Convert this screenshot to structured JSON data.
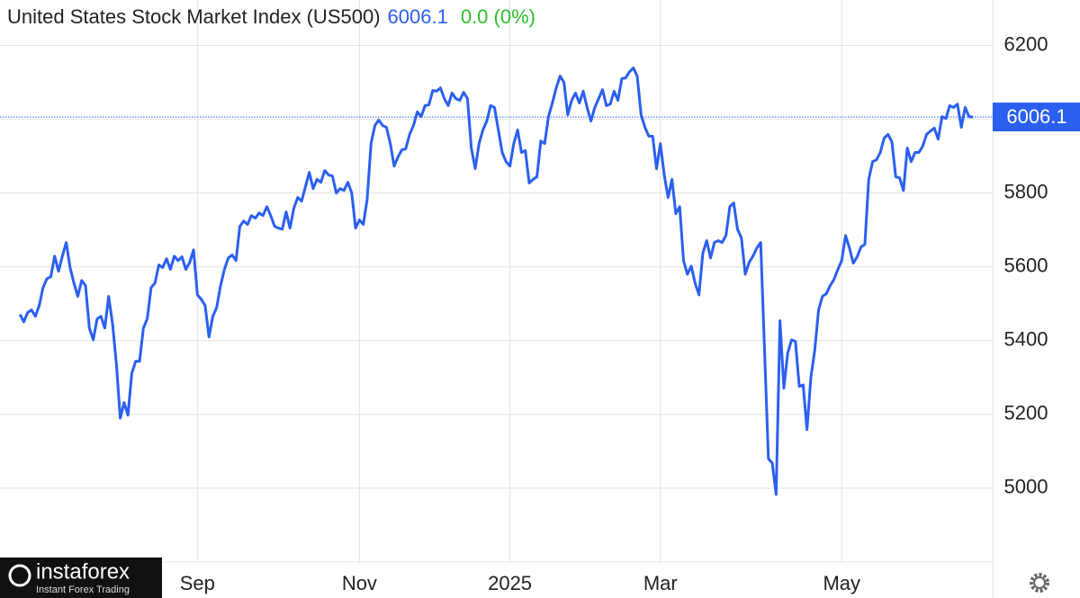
{
  "chart_data": {
    "type": "line",
    "title": "United States Stock Market Index (US500)",
    "current_value": 6006.1,
    "change_text": "0.0 (0%)",
    "series": [
      {
        "name": "US500",
        "color": "#2b5ff0",
        "values": [
          5471,
          5451,
          5476,
          5483,
          5466,
          5495,
          5544,
          5568,
          5573,
          5629,
          5588,
          5629,
          5666,
          5598,
          5556,
          5520,
          5563,
          5549,
          5434,
          5402,
          5459,
          5466,
          5434,
          5520,
          5446,
          5337,
          5190,
          5232,
          5198,
          5312,
          5344,
          5344,
          5434,
          5459,
          5544,
          5556,
          5605,
          5598,
          5622,
          5593,
          5629,
          5617,
          5627,
          5593,
          5612,
          5646,
          5524,
          5512,
          5495,
          5410,
          5466,
          5490,
          5549,
          5593,
          5624,
          5632,
          5617,
          5710,
          5724,
          5715,
          5739,
          5732,
          5746,
          5739,
          5763,
          5739,
          5710,
          5705,
          5702,
          5749,
          5705,
          5759,
          5788,
          5778,
          5817,
          5856,
          5812,
          5837,
          5829,
          5861,
          5849,
          5846,
          5800,
          5812,
          5807,
          5829,
          5800,
          5705,
          5727,
          5715,
          5783,
          5934,
          5983,
          5998,
          5983,
          5978,
          5934,
          5873,
          5898,
          5917,
          5920,
          5959,
          5983,
          6020,
          6007,
          6037,
          6039,
          6078,
          6076,
          6085,
          6056,
          6037,
          6071,
          6056,
          6051,
          6073,
          6056,
          5922,
          5866,
          5934,
          5971,
          5995,
          6037,
          6032,
          5971,
          5910,
          5885,
          5873,
          5934,
          5971,
          5910,
          5915,
          5827,
          5837,
          5844,
          5941,
          5934,
          6007,
          6044,
          6085,
          6117,
          6100,
          6012,
          6051,
          6071,
          6044,
          6076,
          6032,
          5995,
          6032,
          6056,
          6080,
          6037,
          6041,
          6076,
          6051,
          6110,
          6112,
          6129,
          6139,
          6117,
          6012,
          5978,
          5954,
          5954,
          5866,
          5934,
          5849,
          5788,
          5837,
          5744,
          5763,
          5617,
          5580,
          5602,
          5556,
          5524,
          5637,
          5671,
          5624,
          5666,
          5671,
          5666,
          5685,
          5763,
          5773,
          5702,
          5678,
          5580,
          5612,
          5629,
          5651,
          5666,
          5373,
          5080,
          5068,
          4983,
          5454,
          5271,
          5366,
          5402,
          5398,
          5276,
          5280,
          5159,
          5300,
          5373,
          5483,
          5520,
          5527,
          5549,
          5566,
          5593,
          5617,
          5685,
          5651,
          5610,
          5627,
          5654,
          5661,
          5837,
          5885,
          5890,
          5910,
          5949,
          5959,
          5939,
          5844,
          5841,
          5807,
          5922,
          5885,
          5910,
          5910,
          5927,
          5959,
          5968,
          5976,
          5946,
          6007,
          6002,
          6037,
          6032,
          6041,
          5978,
          6032,
          6007,
          6006.1
        ]
      }
    ],
    "xlim": [
      -4,
      247
    ],
    "xticks": [
      {
        "value": 46,
        "label": "Sep"
      },
      {
        "value": 88,
        "label": "Nov"
      },
      {
        "value": 127,
        "label": "2025"
      },
      {
        "value": 166,
        "label": "Mar"
      },
      {
        "value": 213,
        "label": "May"
      }
    ],
    "ylim": [
      4800,
      6300
    ],
    "yticks": [
      5000,
      5200,
      5400,
      5600,
      5800,
      6000,
      6200
    ],
    "grid": true
  },
  "logo": {
    "name": "instaforex",
    "tagline": "Instant Forex Trading"
  }
}
